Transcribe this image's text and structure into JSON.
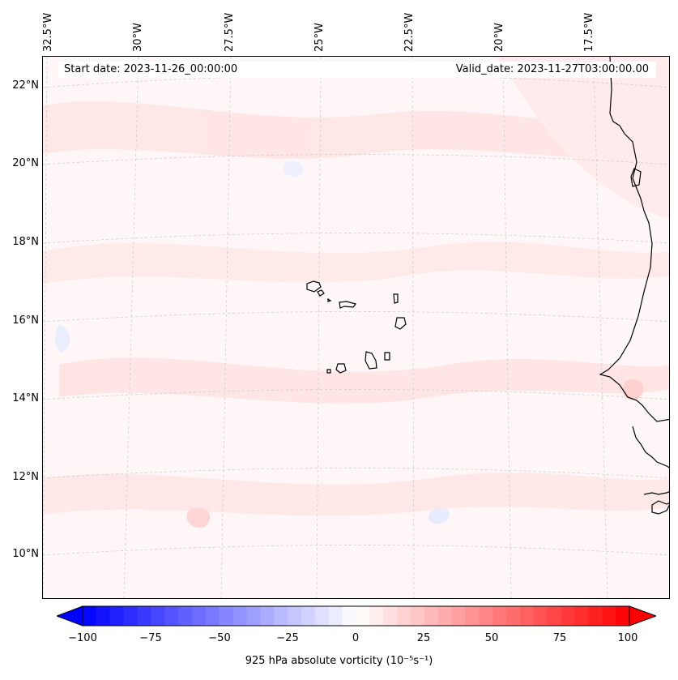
{
  "map": {
    "start_date": "Start date: 2023-11-26_00:00:00",
    "valid_date": "Valid_date: 2023-11-27T03:00:00.00",
    "lon_labels": [
      "32.5°W",
      "30°W",
      "27.5°W",
      "25°W",
      "22.5°W",
      "20°W",
      "17.5°W"
    ],
    "lat_labels": [
      "22°N",
      "20°N",
      "18°N",
      "16°N",
      "14°N",
      "12°N",
      "10°N"
    ],
    "coast_color": "#000000",
    "background_tint": "#fff7f7"
  },
  "colorbar": {
    "label": "925 hPa absolute vorticity (10⁻⁵s⁻¹)",
    "ticks": [
      "−100",
      "−75",
      "−50",
      "−25",
      "0",
      "25",
      "50",
      "75",
      "100"
    ],
    "min": -100,
    "max": 100,
    "min_color": "#0000ff",
    "mid_color": "#ffffff",
    "max_color": "#ff0000"
  }
}
